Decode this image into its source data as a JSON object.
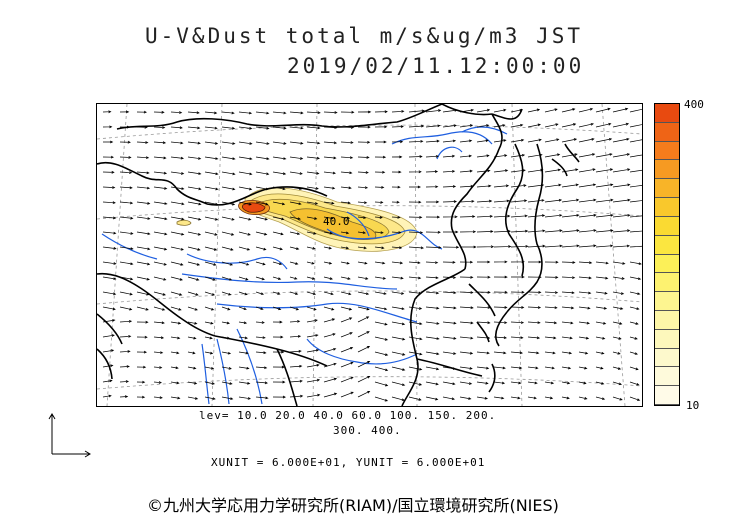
{
  "title": {
    "line1": "U-V&Dust total m/s&ug/m3 JST",
    "line2": "2019/02/11.12:00:00"
  },
  "colorbar": {
    "max_label": "400",
    "min_label": "10",
    "colors": [
      "#e84a10",
      "#ef6416",
      "#f57c1c",
      "#f69a22",
      "#f8b428",
      "#f9c82c",
      "#fada32",
      "#fbe640",
      "#fcf058",
      "#fdf270",
      "#fdf590",
      "#fdf6a8",
      "#fdf8bc",
      "#fdf9cc",
      "#fefadb",
      "#fffbe8"
    ]
  },
  "contour_label": "40.0",
  "levels": {
    "line1": "lev= 10.0 20.0 40.0 60.0 100. 150. 200.",
    "line2": "300. 400."
  },
  "units": "XUNIT = 6.000E+01, YUNIT = 6.000E+01",
  "copyright": "©九州大学応用力学研究所(RIAM)/国立環境研究所(NIES)"
}
